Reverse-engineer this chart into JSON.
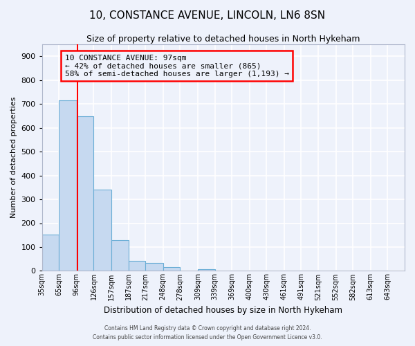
{
  "title": "10, CONSTANCE AVENUE, LINCOLN, LN6 8SN",
  "subtitle": "Size of property relative to detached houses in North Hykeham",
  "xlabel": "Distribution of detached houses by size in North Hykeham",
  "ylabel": "Number of detached properties",
  "bin_labels": [
    "35sqm",
    "65sqm",
    "96sqm",
    "126sqm",
    "157sqm",
    "187sqm",
    "217sqm",
    "248sqm",
    "278sqm",
    "309sqm",
    "339sqm",
    "369sqm",
    "400sqm",
    "430sqm",
    "461sqm",
    "491sqm",
    "521sqm",
    "552sqm",
    "582sqm",
    "613sqm",
    "643sqm"
  ],
  "bin_edges": [
    35,
    65,
    96,
    126,
    157,
    187,
    217,
    248,
    278,
    309,
    339,
    369,
    400,
    430,
    461,
    491,
    521,
    552,
    582,
    613,
    643
  ],
  "bar_heights": [
    153,
    715,
    650,
    340,
    130,
    42,
    32,
    15,
    0,
    8,
    0,
    0,
    0,
    0,
    0,
    0,
    0,
    0,
    0,
    0
  ],
  "bar_color": "#c6d9f0",
  "bar_edge_color": "#6baed6",
  "property_line_x": 97,
  "property_line_color": "red",
  "annotation_title": "10 CONSTANCE AVENUE: 97sqm",
  "annotation_line1": "← 42% of detached houses are smaller (865)",
  "annotation_line2": "58% of semi-detached houses are larger (1,193) →",
  "annotation_box_color": "red",
  "ylim": [
    0,
    950
  ],
  "yticks": [
    0,
    100,
    200,
    300,
    400,
    500,
    600,
    700,
    800,
    900
  ],
  "bg_color": "#eef2fb",
  "grid_color": "#ffffff",
  "footer_line1": "Contains HM Land Registry data © Crown copyright and database right 2024.",
  "footer_line2": "Contains public sector information licensed under the Open Government Licence v3.0."
}
